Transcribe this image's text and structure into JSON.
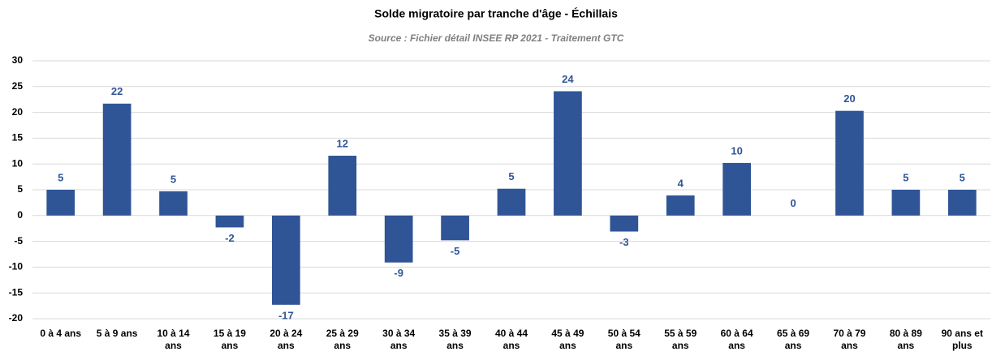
{
  "chart_data": {
    "type": "bar",
    "title": "Solde migratoire par tranche d'âge - Échillais",
    "subtitle": "Source : Fichier détail INSEE RP 2021 - Traitement GTC",
    "categories": [
      "0 à 4 ans",
      "5 à 9 ans",
      "10 à 14 ans",
      "15 à 19 ans",
      "20 à 24 ans",
      "25 à 29 ans",
      "30 à 34 ans",
      "35 à 39 ans",
      "40 à 44 ans",
      "45 à 49 ans",
      "50 à 54 ans",
      "55 à 59 ans",
      "60 à 64 ans",
      "65 à 69 ans",
      "70 à 79 ans",
      "80 à 89 ans",
      "90 ans et plus"
    ],
    "values": [
      5.0,
      21.7,
      4.7,
      -2.3,
      -17.3,
      11.6,
      -9.1,
      -4.8,
      5.2,
      24.1,
      -3.1,
      3.9,
      10.2,
      0,
      20.3,
      5.0,
      5.0
    ],
    "value_labels": [
      "5",
      "22",
      "5",
      "-2",
      "-17",
      "12",
      "-9",
      "-5",
      "5",
      "24",
      "-3",
      "4",
      "10",
      "0",
      "20",
      "5",
      "5"
    ],
    "color": "#2f5597",
    "ylim": [
      -20,
      30
    ],
    "yticks": [
      -20,
      -15,
      -10,
      -5,
      0,
      5,
      10,
      15,
      20,
      25,
      30
    ],
    "grid": true
  }
}
